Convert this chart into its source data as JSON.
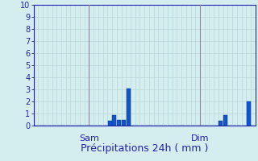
{
  "title": "",
  "xlabel": "Précipitations 24h ( mm )",
  "ylabel": "",
  "ylim": [
    0,
    10
  ],
  "bar_color": "#1155cc",
  "bar_edge_color": "#003399",
  "background_color": "#d4eef0",
  "grid_color": "#b8d8d8",
  "tick_label_color": "#2222aa",
  "xlabel_color": "#2222aa",
  "day_line_color": "#888899",
  "day_label_color": "#2222aa",
  "n_bars": 48,
  "bar_values": [
    0,
    0,
    0,
    0,
    0,
    0,
    0,
    0,
    0,
    0,
    0,
    0,
    0,
    0,
    0,
    0,
    0.4,
    0.9,
    0.45,
    0.45,
    3.1,
    0,
    0,
    0,
    0,
    0,
    0,
    0,
    0,
    0,
    0,
    0,
    0,
    0,
    0,
    0,
    0,
    0,
    0,
    0,
    0.4,
    0.9,
    0,
    0,
    0,
    0,
    2.0,
    0
  ],
  "day_labels": [
    "Sam",
    "Dim"
  ],
  "day_positions": [
    12,
    36
  ],
  "yticks": [
    0,
    1,
    2,
    3,
    4,
    5,
    6,
    7,
    8,
    9,
    10
  ],
  "tick_fontsize": 7,
  "xlabel_fontsize": 9,
  "day_label_fontsize": 8
}
